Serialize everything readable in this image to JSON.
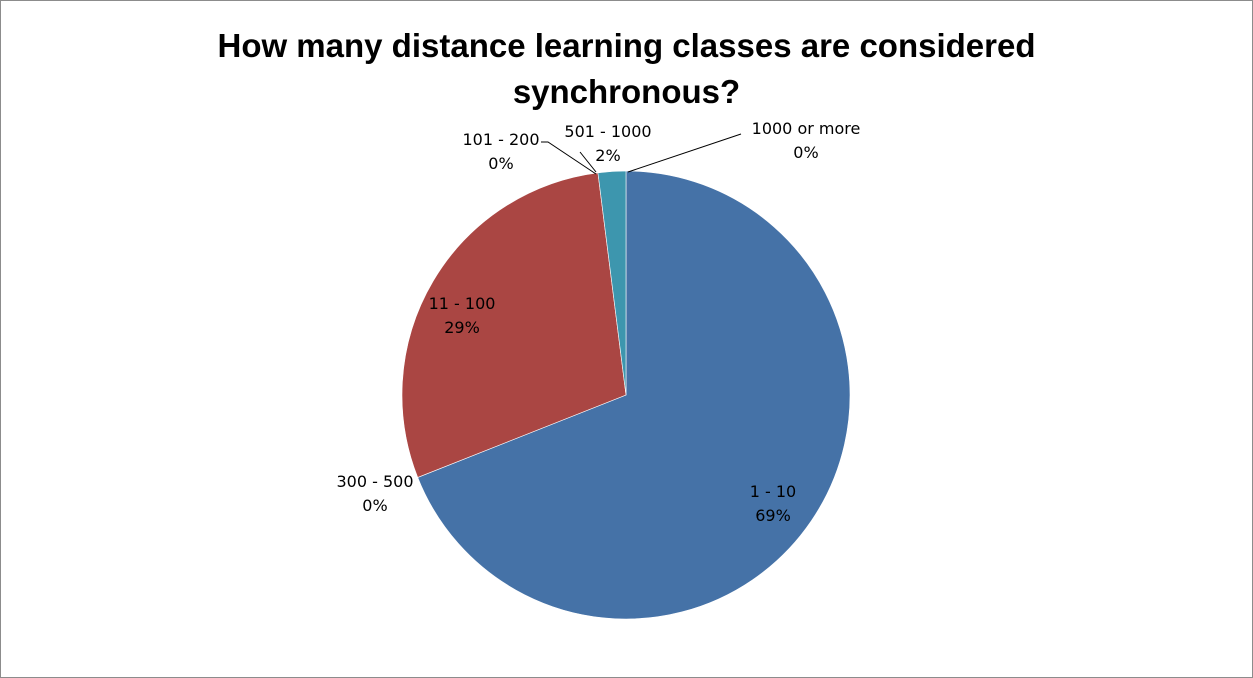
{
  "chart_data": {
    "type": "pie",
    "title_lines": [
      "How many distance learning classes are considered",
      "synchronous?"
    ],
    "slices": [
      {
        "category": "1 - 10",
        "value": 69,
        "percent_label": "69%",
        "color": "#4572A7"
      },
      {
        "category": "300 - 500",
        "value": 0,
        "percent_label": "0%",
        "color": "#4F81BD"
      },
      {
        "category": "11 - 100",
        "value": 29,
        "percent_label": "29%",
        "color": "#AA4643"
      },
      {
        "category": "101 - 200",
        "value": 0,
        "percent_label": "0%",
        "color": "#89A54E"
      },
      {
        "category": "501 - 1000",
        "value": 2,
        "percent_label": "2%",
        "color": "#3D96AE"
      },
      {
        "category": "1000 or more",
        "value": 0,
        "percent_label": "0%",
        "color": "#DB843D"
      }
    ],
    "legend": "none"
  }
}
